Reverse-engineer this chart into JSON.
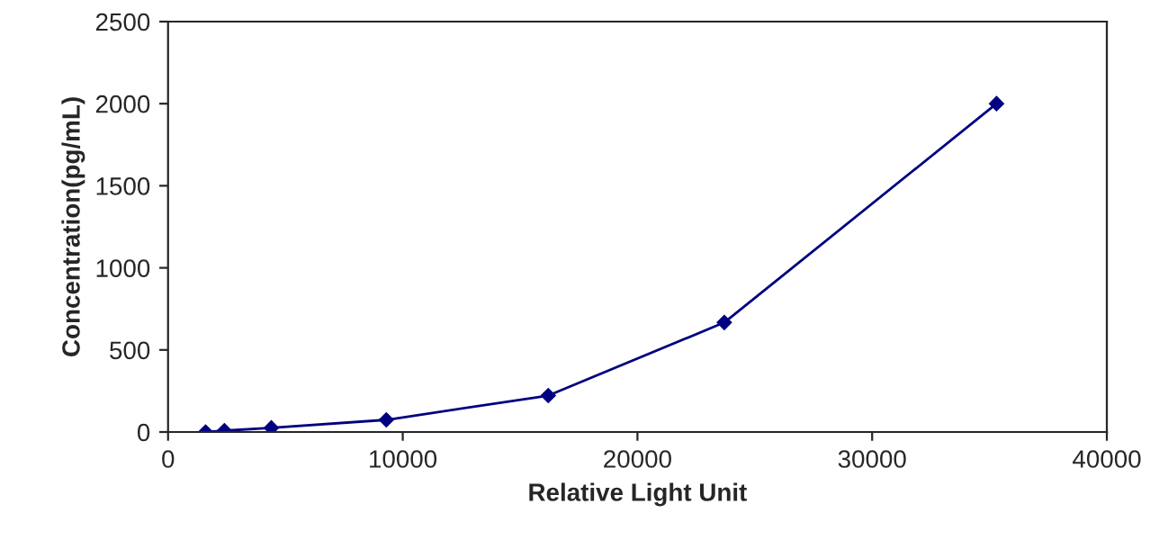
{
  "chart_data": {
    "type": "line",
    "xlabel": "Relative Light Unit",
    "ylabel": "Concentration(pg/mL)",
    "series": [
      {
        "color": "#000080",
        "x": [
          1600,
          2400,
          4400,
          9300,
          16200,
          23700,
          35300
        ],
        "values": [
          0,
          8,
          25,
          74,
          222,
          667,
          2000
        ]
      }
    ],
    "xlim": [
      0,
      40000
    ],
    "xticks": [
      0,
      10000,
      20000,
      30000,
      40000
    ],
    "ylim": [
      0,
      2500
    ],
    "yticks": [
      0,
      500,
      1000,
      1500,
      2000,
      2500
    ],
    "grid": false,
    "legend": false,
    "marker": "diamond",
    "line_style": "solid"
  }
}
